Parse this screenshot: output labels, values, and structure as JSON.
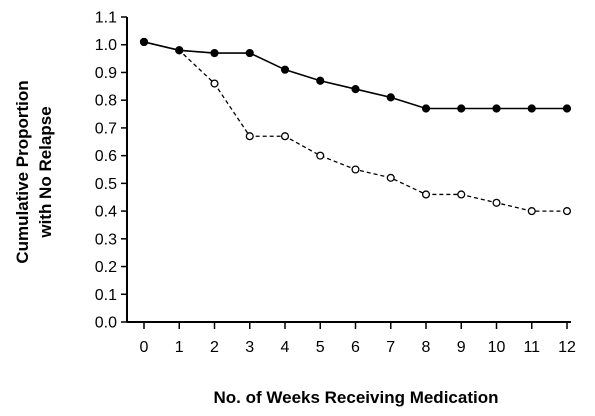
{
  "chart_data": {
    "type": "line",
    "xlabel": "No. of Weeks Receiving Medication",
    "ylabel_lines": [
      "Cumulative Proportion",
      "with No Relapse"
    ],
    "x": [
      0,
      1,
      2,
      3,
      4,
      5,
      6,
      7,
      8,
      9,
      10,
      11,
      12
    ],
    "xlim": [
      0,
      12
    ],
    "ylim": [
      0.0,
      1.1
    ],
    "yticks": [
      0.0,
      0.1,
      0.2,
      0.3,
      0.4,
      0.5,
      0.6,
      0.7,
      0.8,
      0.9,
      1.0,
      1.1
    ],
    "ytick_labels": [
      "0.0",
      "0.1",
      "0.2",
      "0.3",
      "0.4",
      "0.5",
      "0.6",
      "0.7",
      "0.8",
      "0.9",
      "1.0",
      "1.1"
    ],
    "xtick_labels": [
      "0",
      "1",
      "2",
      "3",
      "4",
      "5",
      "6",
      "7",
      "8",
      "9",
      "10",
      "11",
      "12"
    ],
    "series": [
      {
        "style": "solid",
        "marker": "filled-circle",
        "color": "#000000",
        "values": [
          1.01,
          0.98,
          0.97,
          0.97,
          0.91,
          0.87,
          0.84,
          0.81,
          0.77,
          0.77,
          0.77,
          0.77,
          0.77
        ]
      },
      {
        "style": "dashed",
        "marker": "open-circle",
        "color": "#000000",
        "values": [
          1.01,
          0.98,
          0.86,
          0.67,
          0.67,
          0.6,
          0.55,
          0.52,
          0.46,
          0.46,
          0.43,
          0.4,
          0.4
        ]
      }
    ],
    "grid": false,
    "legend": "none"
  }
}
